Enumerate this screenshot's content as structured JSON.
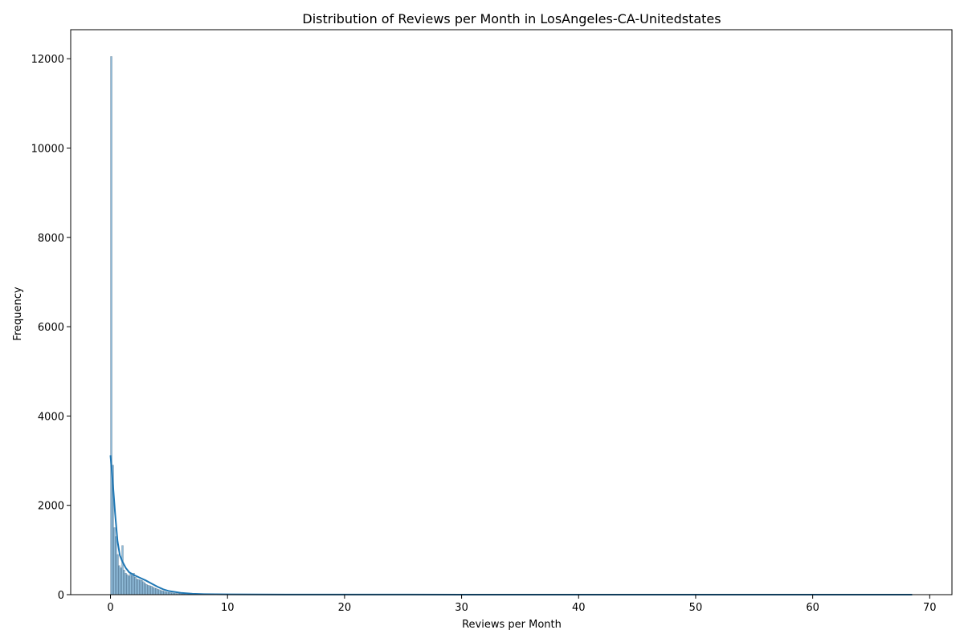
{
  "chart_data": {
    "type": "bar",
    "title": "Distribution of Reviews per Month in LosAngeles-CA-Unitedstates",
    "xlabel": "Reviews per Month",
    "ylabel": "Frequency",
    "xlim": [
      -3.4,
      71.9
    ],
    "ylim": [
      0,
      12650
    ],
    "xticks": [
      0,
      10,
      20,
      30,
      40,
      50,
      60,
      70
    ],
    "yticks": [
      0,
      2000,
      4000,
      6000,
      8000,
      10000,
      12000
    ],
    "grid": false,
    "bin_width": 0.137,
    "histogram": {
      "name": "",
      "bins_start": [
        0.0,
        0.137,
        0.274,
        0.411,
        0.548,
        0.685,
        0.822,
        0.959,
        1.096,
        1.233,
        1.37,
        1.507,
        1.644,
        1.781,
        1.918,
        2.055,
        2.192,
        2.329,
        2.466,
        2.603,
        2.74,
        2.877,
        3.014,
        3.151,
        3.288,
        3.425,
        3.562,
        3.699,
        3.836,
        3.973,
        4.11,
        4.247,
        4.384,
        4.521,
        4.658,
        4.795,
        4.932,
        5.069,
        5.206,
        5.343,
        5.48,
        5.617,
        5.754,
        5.891,
        6.028,
        6.165,
        6.302,
        6.439,
        6.576,
        6.713,
        6.85,
        7.5,
        8.0,
        9.0,
        10.0,
        12.0,
        68.4
      ],
      "counts": [
        12050,
        2900,
        1500,
        1300,
        900,
        650,
        600,
        1100,
        550,
        480,
        450,
        420,
        460,
        430,
        480,
        390,
        350,
        340,
        330,
        320,
        290,
        260,
        230,
        210,
        200,
        190,
        170,
        150,
        140,
        120,
        110,
        95,
        85,
        75,
        65,
        55,
        50,
        45,
        40,
        35,
        30,
        25,
        22,
        20,
        18,
        15,
        12,
        10,
        9,
        8,
        7,
        5,
        4,
        3,
        2,
        1,
        1
      ],
      "color": "#1f77b4"
    },
    "kde": {
      "x": [
        0,
        0.2,
        0.4,
        0.6,
        0.8,
        1.0,
        1.3,
        1.6,
        2.0,
        2.5,
        3.0,
        3.5,
        4.0,
        4.5,
        5.0,
        6.0,
        7.0,
        8.0,
        10.0,
        15.0,
        20.0,
        30.0,
        40.0,
        50.0,
        60.0,
        68.5
      ],
      "y": [
        3120,
        2500,
        1800,
        1200,
        880,
        750,
        600,
        500,
        440,
        380,
        320,
        250,
        180,
        120,
        80,
        40,
        20,
        12,
        6,
        3,
        2,
        1,
        1,
        1,
        1,
        1
      ],
      "color": "#1f77b4"
    }
  }
}
